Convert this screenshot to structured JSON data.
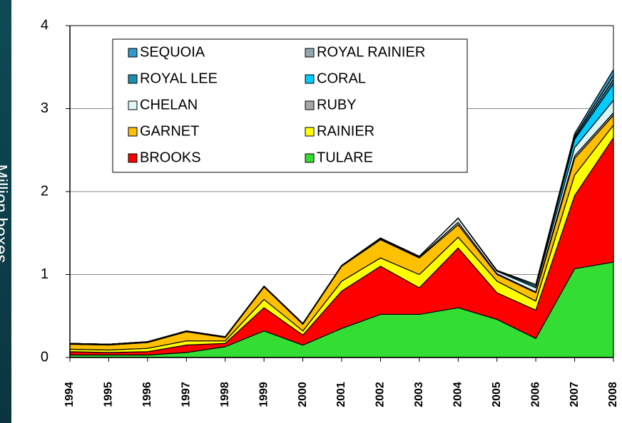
{
  "chart_data": {
    "type": "stacked_area",
    "y_label": "Million boxes",
    "categories": [
      "1994",
      "1995",
      "1996",
      "1997",
      "1998",
      "1999",
      "2000",
      "2001",
      "2002",
      "2003",
      "2004",
      "2005",
      "2006",
      "2007",
      "2008"
    ],
    "series": [
      {
        "name": "TULARE",
        "color": "#33dd33",
        "values": [
          0.03,
          0.03,
          0.03,
          0.06,
          0.13,
          0.32,
          0.15,
          0.35,
          0.52,
          0.52,
          0.6,
          0.46,
          0.23,
          1.07,
          1.15
        ]
      },
      {
        "name": "BROOKS",
        "color": "#ff0000",
        "values": [
          0.04,
          0.03,
          0.04,
          0.09,
          0.04,
          0.28,
          0.12,
          0.45,
          0.58,
          0.32,
          0.72,
          0.32,
          0.34,
          0.88,
          1.5
        ]
      },
      {
        "name": "RAINIER",
        "color": "#ffff00",
        "values": [
          0.03,
          0.03,
          0.04,
          0.05,
          0.03,
          0.1,
          0.05,
          0.12,
          0.1,
          0.16,
          0.13,
          0.14,
          0.11,
          0.25,
          0.15
        ]
      },
      {
        "name": "GARNET",
        "color": "#ffc000",
        "values": [
          0.06,
          0.06,
          0.07,
          0.11,
          0.04,
          0.15,
          0.08,
          0.18,
          0.22,
          0.2,
          0.15,
          0.08,
          0.1,
          0.2,
          0.12
        ]
      },
      {
        "name": "RUBY",
        "color": "#a6a6a6",
        "values": [
          0.01,
          0.01,
          0.01,
          0.01,
          0.01,
          0.01,
          0.01,
          0.01,
          0.01,
          0.01,
          0.03,
          0.01,
          0.01,
          0.03,
          0.03
        ]
      },
      {
        "name": "CHELAN",
        "color": "#ddf5f5",
        "values": [
          0,
          0,
          0,
          0,
          0,
          0,
          0,
          0,
          0.01,
          0.01,
          0.05,
          0.03,
          0.05,
          0.1,
          0.15
        ]
      },
      {
        "name": "CORAL",
        "color": "#00ccff",
        "values": [
          0,
          0,
          0,
          0,
          0,
          0,
          0,
          0,
          0,
          0,
          0,
          0.01,
          0.02,
          0.1,
          0.2
        ]
      },
      {
        "name": "ROYAL LEE",
        "color": "#1f8fb0",
        "values": [
          0,
          0,
          0,
          0,
          0,
          0,
          0,
          0,
          0,
          0,
          0,
          0,
          0,
          0.02,
          0.05
        ]
      },
      {
        "name": "ROYAL RAINIER",
        "color": "#8fa8ae",
        "values": [
          0,
          0,
          0,
          0,
          0,
          0,
          0,
          0,
          0,
          0,
          0,
          0,
          0.02,
          0.02,
          0.05
        ]
      },
      {
        "name": "SEQUOIA",
        "color": "#3399cc",
        "values": [
          0,
          0,
          0,
          0,
          0,
          0,
          0,
          0,
          0,
          0,
          0,
          0,
          0,
          0.03,
          0.07
        ]
      }
    ],
    "ylim": [
      0,
      4
    ],
    "yticks": [
      0,
      1,
      2,
      3,
      4
    ],
    "grid": true,
    "legend": "top"
  }
}
